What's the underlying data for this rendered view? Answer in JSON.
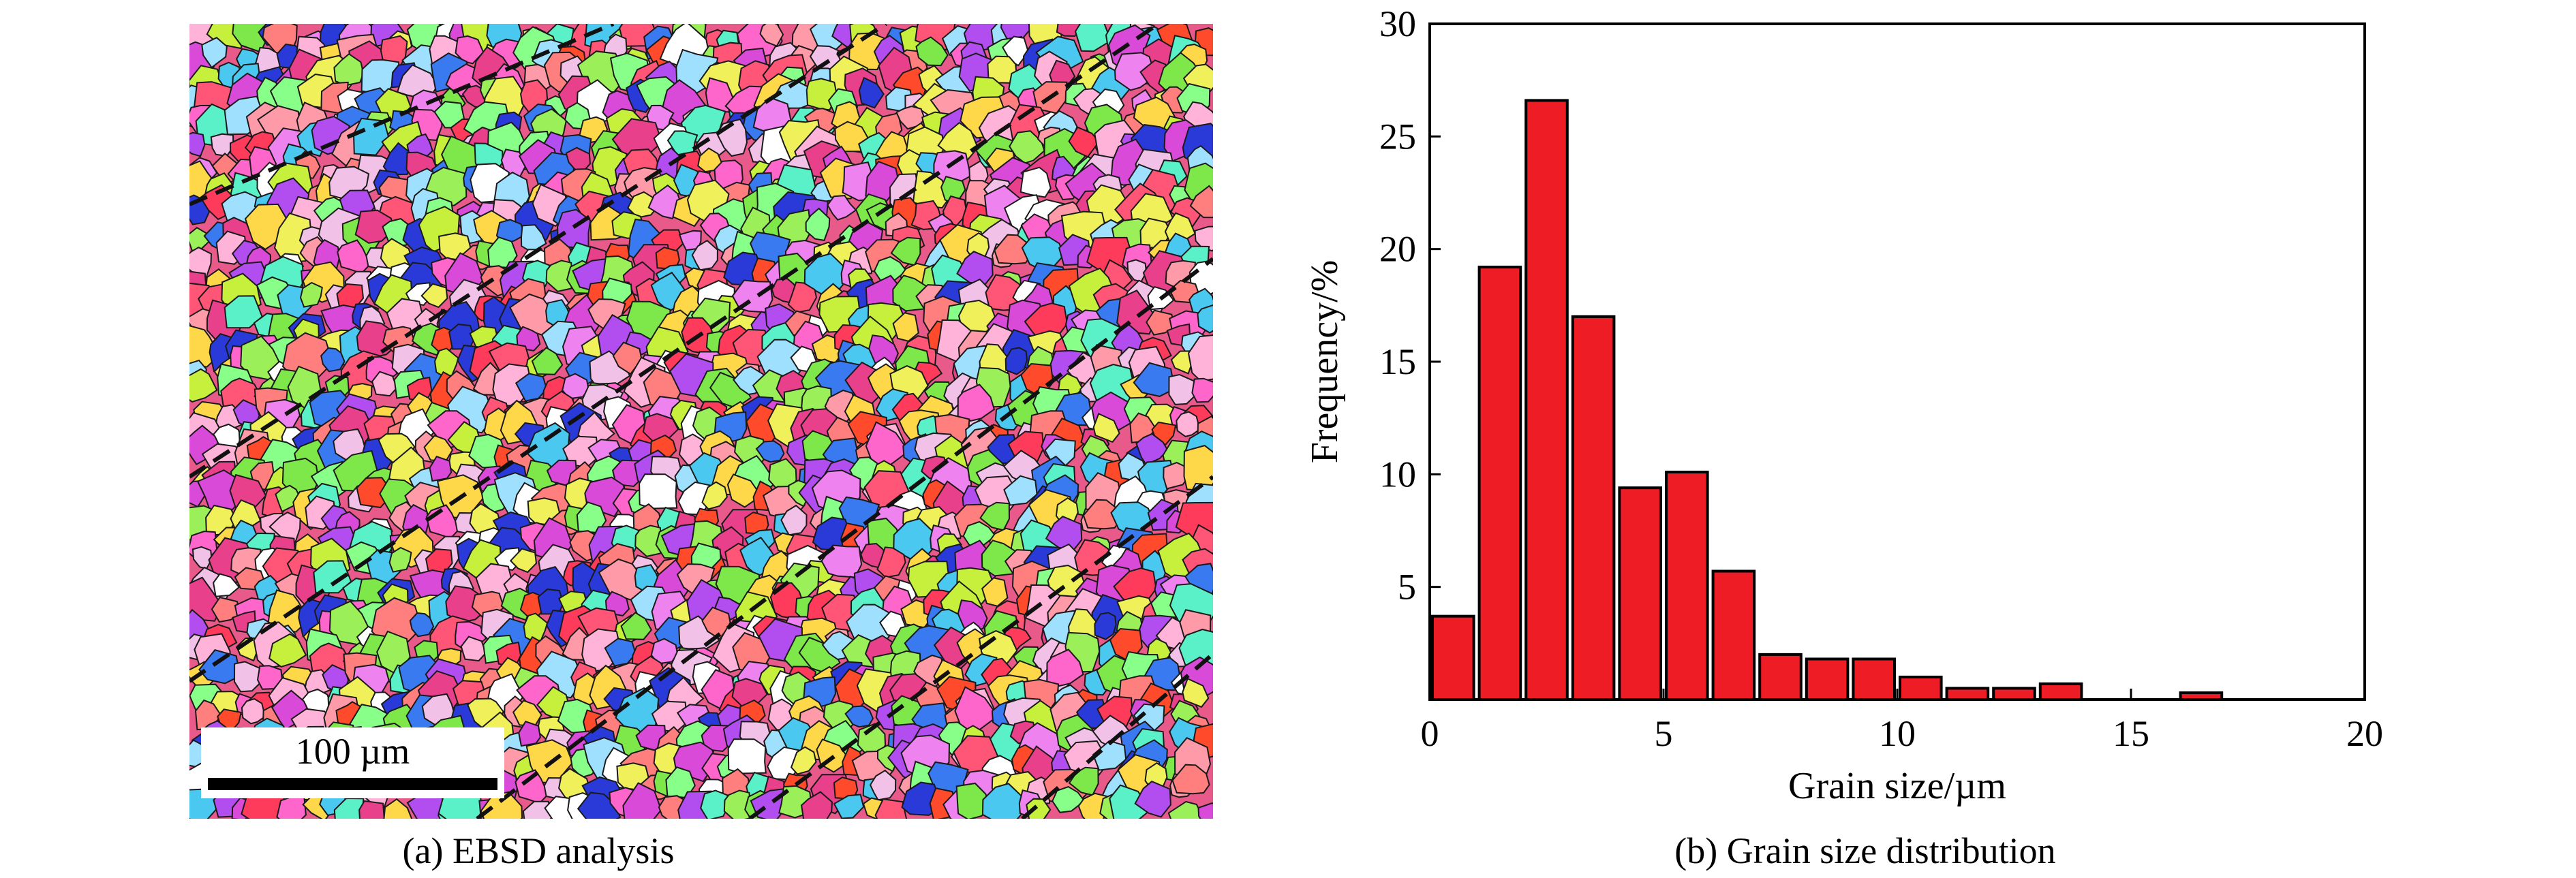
{
  "panel_a": {
    "caption": "(a) EBSD analysis",
    "scale_bar_label": "100 µm"
  },
  "panel_b": {
    "caption": "(b) Grain size distribution"
  },
  "chart_data": {
    "type": "bar",
    "title": "",
    "xlabel": "Grain size/µm",
    "ylabel": "Frequency/%",
    "xlim": [
      0,
      20
    ],
    "ylim": [
      0,
      30
    ],
    "bin_width": 1,
    "x_ticks": [
      0,
      5,
      10,
      15,
      20
    ],
    "y_ticks": [
      5,
      10,
      15,
      20,
      25,
      30
    ],
    "bar_color": "#ee1c25",
    "grid": false,
    "bins": [
      {
        "x": 1,
        "value": 3.7
      },
      {
        "x": 2,
        "value": 19.2
      },
      {
        "x": 3,
        "value": 26.6
      },
      {
        "x": 4,
        "value": 17.0
      },
      {
        "x": 5,
        "value": 9.4
      },
      {
        "x": 6,
        "value": 10.1
      },
      {
        "x": 7,
        "value": 5.7
      },
      {
        "x": 8,
        "value": 2.0
      },
      {
        "x": 9,
        "value": 1.8
      },
      {
        "x": 10,
        "value": 1.8
      },
      {
        "x": 11,
        "value": 1.0
      },
      {
        "x": 12,
        "value": 0.5
      },
      {
        "x": 13,
        "value": 0.5
      },
      {
        "x": 14,
        "value": 0.7
      },
      {
        "x": 17,
        "value": 0.3
      }
    ]
  }
}
